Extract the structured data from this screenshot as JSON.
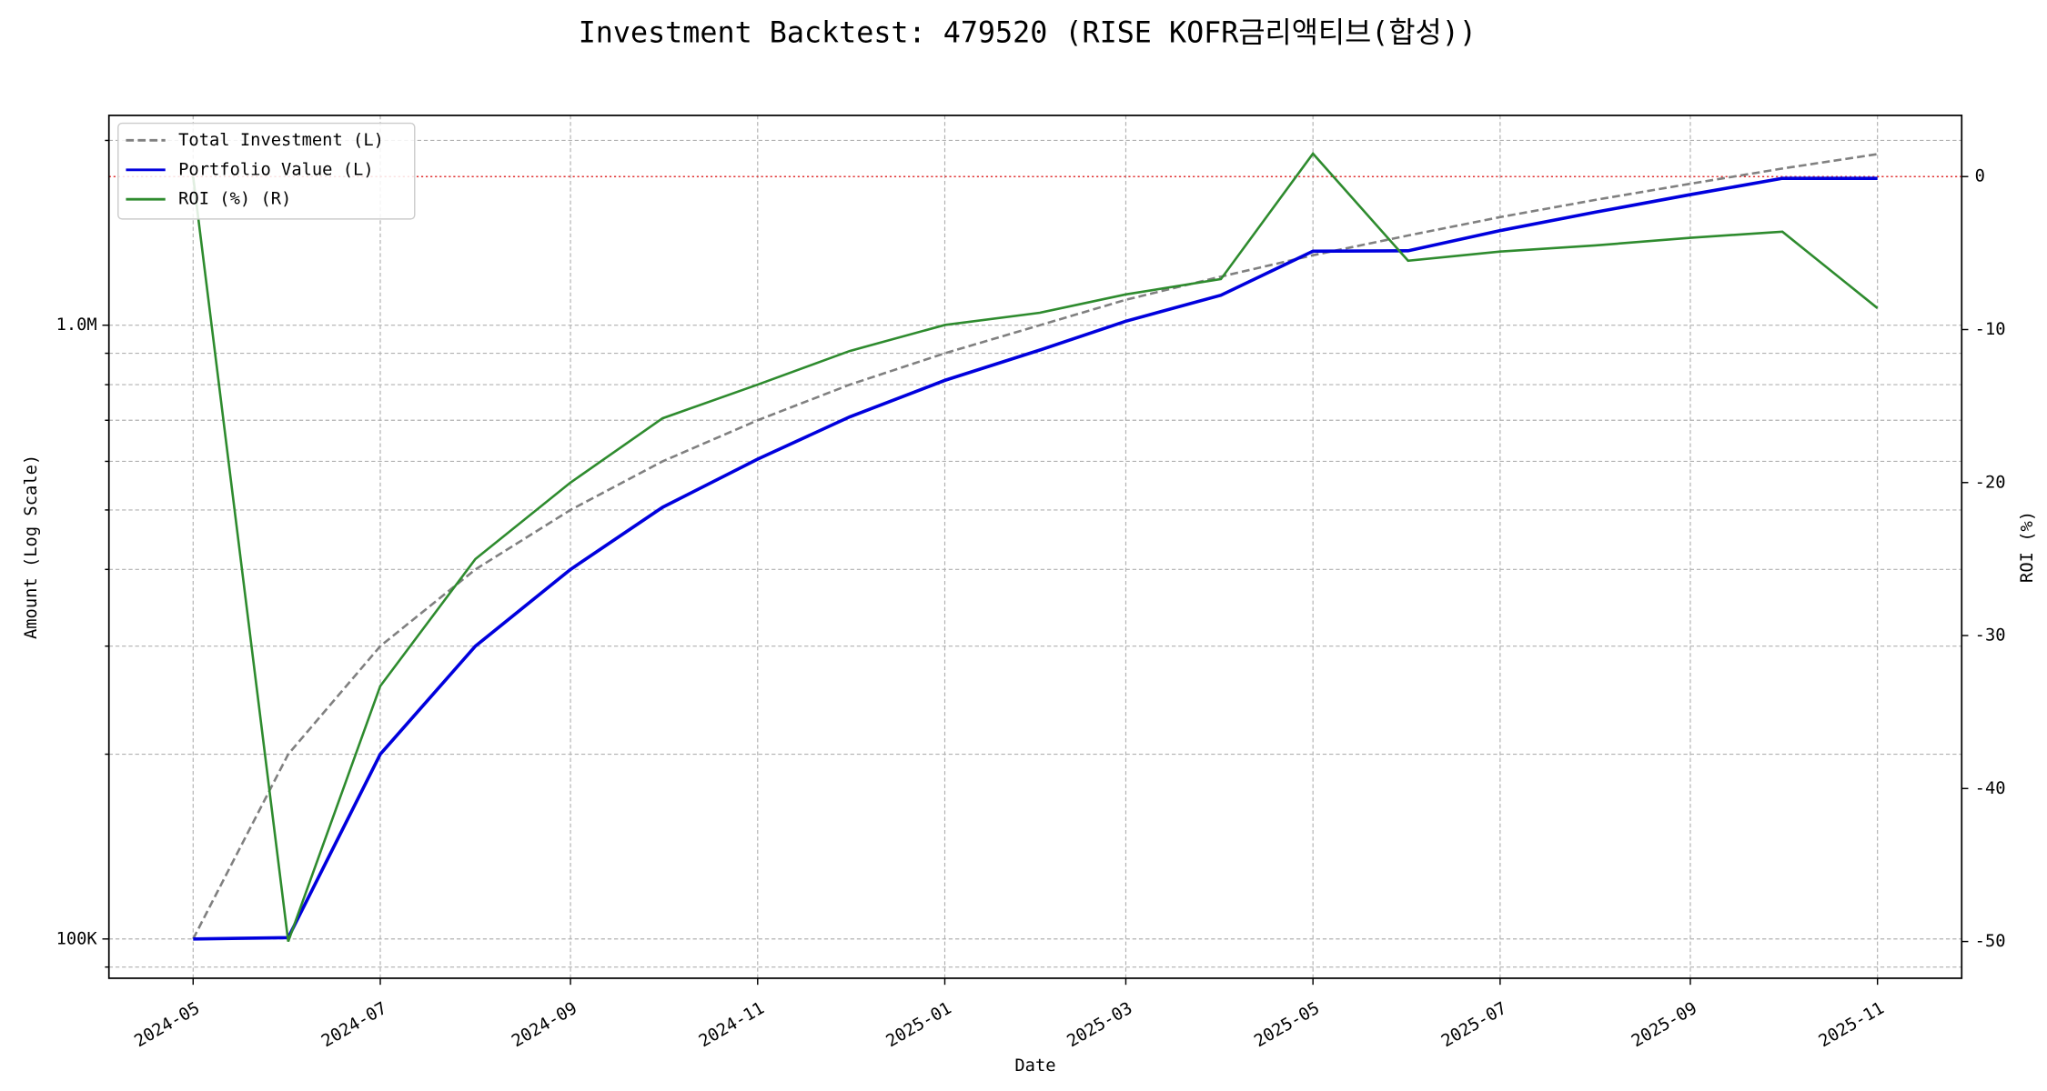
{
  "chart_data": {
    "type": "line",
    "title": "Investment Backtest: 479520 (RISE KOFR금리액티브(합성))",
    "xlabel": "Date",
    "ylabel": "Amount (Log Scale)",
    "y2label": "ROI (%)",
    "x": [
      "2024-05",
      "2024-06",
      "2024-07",
      "2024-08",
      "2024-09",
      "2024-10",
      "2024-11",
      "2024-12",
      "2025-01",
      "2025-02",
      "2025-03",
      "2025-04",
      "2025-05",
      "2025-06",
      "2025-07",
      "2025-08",
      "2025-09",
      "2025-10",
      "2025-11"
    ],
    "xticks": [
      "2024-05",
      "2024-07",
      "2024-09",
      "2024-11",
      "2025-01",
      "2025-03",
      "2025-05",
      "2025-07",
      "2025-09",
      "2025-11"
    ],
    "y_scale": "log",
    "ylim": [
      86300,
      2197000
    ],
    "yticks": [
      {
        "value": 100000,
        "label": "100K"
      },
      {
        "value": 1000000,
        "label": "1.0M"
      }
    ],
    "yminor_ticks": [
      90000,
      200000,
      300000,
      400000,
      500000,
      600000,
      700000,
      800000,
      900000,
      2000000
    ],
    "y2lim": [
      -52.4,
      4.0
    ],
    "y2ticks": [
      0,
      -10,
      -20,
      -30,
      -40,
      -50
    ],
    "y2_reference_line": {
      "value": 0,
      "color": "#e03030"
    },
    "grid": true,
    "legend": "upper-left",
    "ylabel_color": "#1010cc",
    "y2label_color": "#2e8b2e",
    "series": [
      {
        "name": "Total Investment (L)",
        "color": "#808080",
        "linestyle": "dashed",
        "axis": "y",
        "values": [
          100000,
          200000,
          300000,
          400000,
          500000,
          600000,
          700000,
          800000,
          900000,
          1000000,
          1100000,
          1200000,
          1300000,
          1400000,
          1500000,
          1600000,
          1700000,
          1800000,
          1900000
        ]
      },
      {
        "name": "Portfolio Value (L)",
        "color": "#0000dd",
        "linestyle": "solid",
        "axis": "y",
        "values": [
          100000,
          100500,
          200000,
          300000,
          400000,
          505000,
          605000,
          709000,
          813000,
          911000,
          1015000,
          1119000,
          1320000,
          1322000,
          1426000,
          1528000,
          1632000,
          1735000,
          1735000
        ]
      },
      {
        "name": "ROI (%) (R)",
        "color": "#2e8b2e",
        "linestyle": "solid",
        "axis": "y2",
        "values": [
          0,
          -50,
          -33.3,
          -25,
          -20,
          -15.8,
          -13.6,
          -11.4,
          -9.7,
          -8.9,
          -7.7,
          -6.7,
          1.5,
          -5.5,
          -4.9,
          -4.5,
          -4.0,
          -3.6,
          -8.6
        ]
      }
    ]
  }
}
